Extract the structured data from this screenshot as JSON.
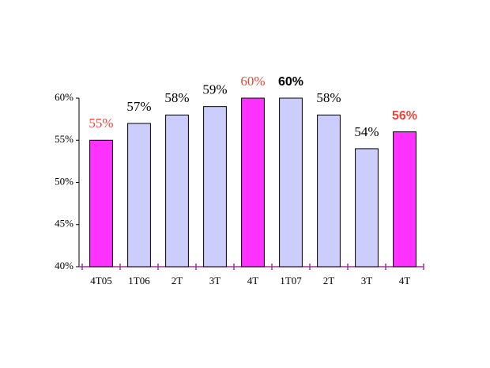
{
  "chart_data": {
    "type": "bar",
    "categories": [
      "4T05",
      "1T06",
      "2T",
      "3T",
      "4T",
      "1T07",
      "2T",
      "3T",
      "4T"
    ],
    "values": [
      55,
      57,
      58,
      59,
      60,
      60,
      58,
      54,
      56
    ],
    "value_labels": [
      "55%",
      "57%",
      "58%",
      "59%",
      "60%",
      "60%",
      "58%",
      "54%",
      "56%"
    ],
    "colors": [
      "#ff33ff",
      "#ccccff",
      "#ccccff",
      "#ccccff",
      "#ff33ff",
      "#ccccff",
      "#ccccff",
      "#ccccff",
      "#ff33ff"
    ],
    "label_colors": [
      "#e8473a",
      "#000000",
      "#000000",
      "#000000",
      "#e8473a",
      "#000000",
      "#000000",
      "#000000",
      "#e8473a"
    ],
    "ylim": [
      40,
      60
    ],
    "yticks": [
      {
        "value": 40,
        "label": "40%"
      },
      {
        "value": 45,
        "label": "45%"
      },
      {
        "value": 50,
        "label": "50%"
      },
      {
        "value": 55,
        "label": "55%"
      },
      {
        "value": 60,
        "label": "60%"
      }
    ],
    "grid": false
  }
}
